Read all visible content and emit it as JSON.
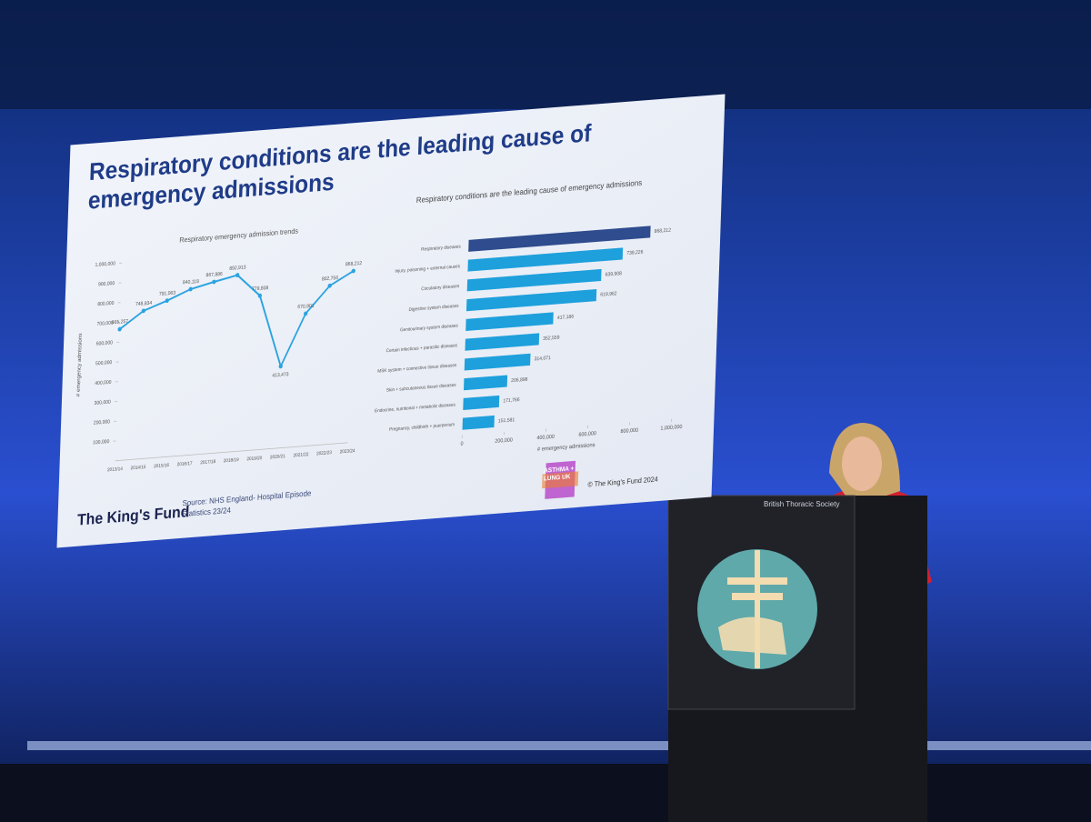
{
  "slide": {
    "title": "Respiratory conditions are the leading cause of emergency admissions",
    "source": "Source: NHS England- Hospital Episode Statistics 23/24",
    "logo": "The King's Fund",
    "partner_logo": "ASTHMA + LUNG UK",
    "copyright": "© The King's Fund  2024"
  },
  "podium": {
    "label": "British Thoracic Society"
  },
  "chart_data": [
    {
      "type": "line",
      "title": "Respiratory emergency admission trends",
      "y_label": "# emergency admissions",
      "categories": [
        "2013/14",
        "2014/15",
        "2015/16",
        "2016/17",
        "2017/18",
        "2018/19",
        "2019/20",
        "2020/21",
        "2021/22",
        "2022/23",
        "2023/24"
      ],
      "values": [
        665257,
        748834,
        791063,
        840118,
        867886,
        892913,
        779808,
        413473,
        670901,
        802756,
        868212
      ],
      "value_labels": [
        "665,257",
        "748,834",
        "791,063",
        "840,118",
        "867,886",
        "892,913",
        "779,808",
        "413,473",
        "670,901",
        "802,756",
        "868,212"
      ],
      "color": "#2aa3e0",
      "ylim": [
        0,
        1000000
      ],
      "yticks": [
        {
          "value": 100000,
          "label": "100,000"
        },
        {
          "value": 200000,
          "label": "200,000"
        },
        {
          "value": 300000,
          "label": "300,000"
        },
        {
          "value": 400000,
          "label": "400,000"
        },
        {
          "value": 500000,
          "label": "500,000"
        },
        {
          "value": 600000,
          "label": "600,000"
        },
        {
          "value": 700000,
          "label": "700,000"
        },
        {
          "value": 800000,
          "label": "800,000"
        },
        {
          "value": 900000,
          "label": "900,000"
        },
        {
          "value": 1000000,
          "label": "1,000,000"
        }
      ]
    },
    {
      "type": "hbar",
      "title": "Respiratory conditions are the leading cause of emergency admissions",
      "x_label": "# emergency admissions",
      "categories": [
        "Respiratory diseases",
        "Injury, poisoning + external causes",
        "Circulatory diseases",
        "Digestive system diseases",
        "Genitourinary system diseases",
        "Certain infectious + parasitic diseases",
        "MSK system + connective tissue diseases",
        "Skin + subcutaneous tissue diseases",
        "Endocrine, nutritional + metabolic diseases",
        "Pregnancy, childbirth + puerperium"
      ],
      "values": [
        868212,
        739226,
        639908,
        619962,
        417186,
        352559,
        314071,
        206898,
        171766,
        151581
      ],
      "value_labels": [
        "868,212",
        "739,226",
        "639,908",
        "619,962",
        "417,186",
        "352,559",
        "314,071",
        "206,898",
        "171,766",
        "151,581"
      ],
      "colors": [
        "#2e4c8e",
        "#1ea0dc",
        "#1ea0dc",
        "#1ea0dc",
        "#1ea0dc",
        "#1ea0dc",
        "#1ea0dc",
        "#1ea0dc",
        "#1ea0dc",
        "#1ea0dc"
      ],
      "xlim": [
        0,
        1000000
      ],
      "xticks": [
        0,
        {
          "value": 200000,
          "label": "200,000"
        },
        {
          "value": 400000,
          "label": "400,000"
        },
        {
          "value": 600000,
          "label": "600,000"
        },
        {
          "value": 800000,
          "label": "800,000"
        },
        {
          "value": 1000000,
          "label": "1,000,000"
        }
      ]
    }
  ]
}
